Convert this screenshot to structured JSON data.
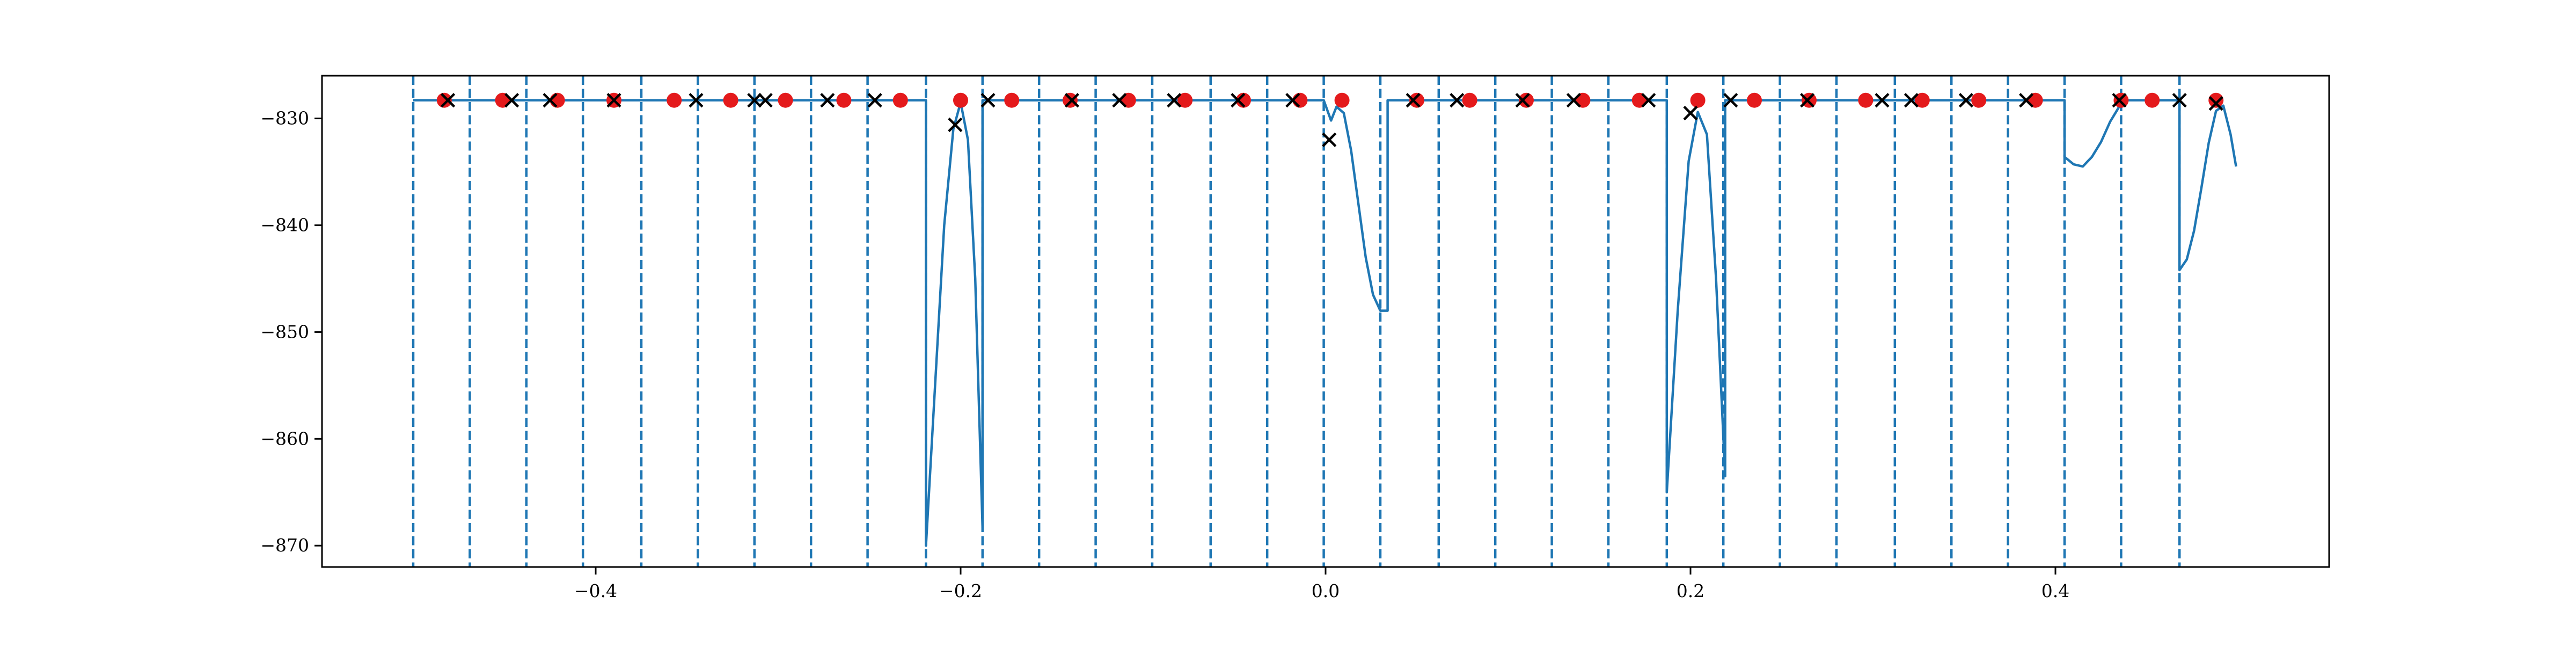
{
  "chart_data": {
    "type": "line",
    "title": "",
    "xlabel": "",
    "ylabel": "",
    "xlim": [
      -0.55,
      0.55
    ],
    "ylim": [
      -872,
      -826
    ],
    "xticks": [
      -0.4,
      -0.2,
      0.0,
      0.2,
      0.4
    ],
    "xtick_labels": [
      "−0.4",
      "−0.2",
      "0.0",
      "0.2",
      "0.4"
    ],
    "yticks": [
      -830,
      -840,
      -850,
      -860,
      -870
    ],
    "ytick_labels": [
      "−830",
      "−840",
      "−850",
      "−860",
      "−870"
    ],
    "grid": false,
    "legend": "none",
    "colors": {
      "line": "#1f77b4",
      "vline": "#1f77b4",
      "dot": "#e41a1c",
      "cross": "#000000"
    },
    "vertical_dashed_lines_x": [
      -0.5,
      -0.469,
      -0.438,
      -0.407,
      -0.375,
      -0.344,
      -0.313,
      -0.282,
      -0.251,
      -0.219,
      -0.188,
      -0.157,
      -0.126,
      -0.095,
      -0.063,
      -0.032,
      -0.001,
      0.03,
      0.062,
      0.093,
      0.124,
      0.155,
      0.187,
      0.218,
      0.249,
      0.28,
      0.312,
      0.343,
      0.374,
      0.405,
      0.436,
      0.468
    ],
    "series": [
      {
        "style": "line",
        "points": [
          [
            -0.5,
            -828.3
          ],
          [
            -0.219,
            -828.3
          ],
          [
            -0.219,
            -870
          ],
          [
            -0.214,
            -855
          ],
          [
            -0.209,
            -840
          ],
          [
            -0.204,
            -831
          ],
          [
            -0.2,
            -828.5
          ],
          [
            -0.196,
            -832
          ],
          [
            -0.192,
            -845
          ],
          [
            -0.188,
            -868.3
          ],
          [
            -0.188,
            -828.3
          ],
          [
            -0.001,
            -828.3
          ],
          [
            0.003,
            -830.2
          ],
          [
            0.006,
            -828.9
          ],
          [
            0.01,
            -829.5
          ],
          [
            0.014,
            -833
          ],
          [
            0.018,
            -838
          ],
          [
            0.022,
            -843
          ],
          [
            0.026,
            -846.5
          ],
          [
            0.03,
            -848
          ],
          [
            0.034,
            -848
          ],
          [
            0.034,
            -828.3
          ],
          [
            0.187,
            -828.3
          ],
          [
            0.187,
            -865
          ],
          [
            0.193,
            -848
          ],
          [
            0.199,
            -834
          ],
          [
            0.204,
            -829.4
          ],
          [
            0.209,
            -831.5
          ],
          [
            0.214,
            -845
          ],
          [
            0.219,
            -863.5
          ],
          [
            0.219,
            -828.3
          ],
          [
            0.405,
            -828.3
          ],
          [
            0.405,
            -833.6
          ],
          [
            0.41,
            -834.3
          ],
          [
            0.415,
            -834.5
          ],
          [
            0.42,
            -833.6
          ],
          [
            0.425,
            -832.2
          ],
          [
            0.43,
            -830.3
          ],
          [
            0.436,
            -828.6
          ],
          [
            0.436,
            -828.3
          ],
          [
            0.468,
            -828.3
          ],
          [
            0.468,
            -844.2
          ],
          [
            0.472,
            -843.2
          ],
          [
            0.476,
            -840.5
          ],
          [
            0.48,
            -836.5
          ],
          [
            0.484,
            -832.3
          ],
          [
            0.488,
            -829.3
          ],
          [
            0.492,
            -828.8
          ],
          [
            0.496,
            -831.5
          ],
          [
            0.499,
            -834.5
          ]
        ]
      },
      {
        "style": "markers-dot",
        "points": [
          [
            -0.483,
            -828.3
          ],
          [
            -0.451,
            -828.3
          ],
          [
            -0.421,
            -828.3
          ],
          [
            -0.39,
            -828.3
          ],
          [
            -0.357,
            -828.3
          ],
          [
            -0.326,
            -828.3
          ],
          [
            -0.296,
            -828.3
          ],
          [
            -0.264,
            -828.3
          ],
          [
            -0.233,
            -828.3
          ],
          [
            -0.2,
            -828.3
          ],
          [
            -0.172,
            -828.3
          ],
          [
            -0.14,
            -828.3
          ],
          [
            -0.108,
            -828.3
          ],
          [
            -0.077,
            -828.3
          ],
          [
            -0.045,
            -828.3
          ],
          [
            -0.014,
            -828.3
          ],
          [
            0.009,
            -828.3
          ],
          [
            0.05,
            -828.3
          ],
          [
            0.079,
            -828.3
          ],
          [
            0.11,
            -828.3
          ],
          [
            0.141,
            -828.3
          ],
          [
            0.172,
            -828.3
          ],
          [
            0.204,
            -828.3
          ],
          [
            0.235,
            -828.3
          ],
          [
            0.265,
            -828.3
          ],
          [
            0.296,
            -828.3
          ],
          [
            0.327,
            -828.3
          ],
          [
            0.358,
            -828.3
          ],
          [
            0.389,
            -828.3
          ],
          [
            0.436,
            -828.3
          ],
          [
            0.453,
            -828.3
          ],
          [
            0.488,
            -828.3
          ]
        ]
      },
      {
        "style": "markers-x",
        "points": [
          [
            -0.481,
            -828.3
          ],
          [
            -0.446,
            -828.3
          ],
          [
            -0.425,
            -828.3
          ],
          [
            -0.39,
            -828.3
          ],
          [
            -0.345,
            -828.3
          ],
          [
            -0.313,
            -828.3
          ],
          [
            -0.307,
            -828.3
          ],
          [
            -0.273,
            -828.3
          ],
          [
            -0.247,
            -828.3
          ],
          [
            -0.203,
            -830.6
          ],
          [
            -0.185,
            -828.3
          ],
          [
            -0.139,
            -828.3
          ],
          [
            -0.113,
            -828.3
          ],
          [
            -0.083,
            -828.3
          ],
          [
            -0.048,
            -828.3
          ],
          [
            -0.018,
            -828.3
          ],
          [
            0.002,
            -832
          ],
          [
            0.048,
            -828.3
          ],
          [
            0.072,
            -828.3
          ],
          [
            0.108,
            -828.3
          ],
          [
            0.136,
            -828.3
          ],
          [
            0.177,
            -828.3
          ],
          [
            0.2,
            -829.5
          ],
          [
            0.222,
            -828.3
          ],
          [
            0.264,
            -828.3
          ],
          [
            0.305,
            -828.3
          ],
          [
            0.321,
            -828.3
          ],
          [
            0.351,
            -828.3
          ],
          [
            0.384,
            -828.3
          ],
          [
            0.435,
            -828.3
          ],
          [
            0.468,
            -828.3
          ],
          [
            0.488,
            -828.6
          ]
        ]
      }
    ]
  }
}
